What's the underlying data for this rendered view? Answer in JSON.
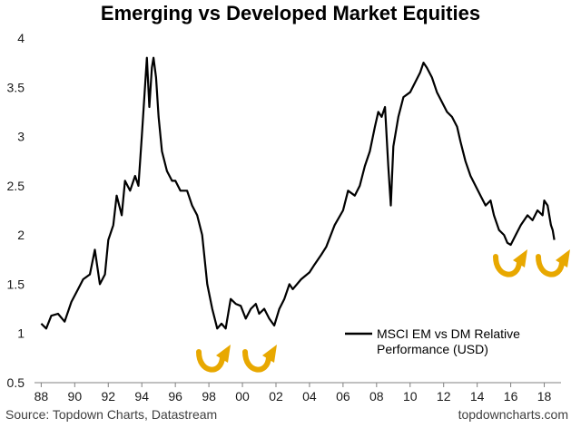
{
  "chart_data": {
    "type": "line",
    "title": "Emerging vs Developed Market Equities",
    "xlabel": "",
    "ylabel": "",
    "ylim": [
      0.5,
      4
    ],
    "yticks": [
      "0.5",
      "1",
      "1.5",
      "2",
      "2.5",
      "3",
      "3.5",
      "4"
    ],
    "xlim": [
      1987.6,
      2019.0
    ],
    "xticks": [
      {
        "year": 1988,
        "label": "88"
      },
      {
        "year": 1990,
        "label": "90"
      },
      {
        "year": 1992,
        "label": "92"
      },
      {
        "year": 1994,
        "label": "94"
      },
      {
        "year": 1996,
        "label": "96"
      },
      {
        "year": 1998,
        "label": "98"
      },
      {
        "year": 2000,
        "label": "00"
      },
      {
        "year": 2002,
        "label": "02"
      },
      {
        "year": 2004,
        "label": "04"
      },
      {
        "year": 2006,
        "label": "06"
      },
      {
        "year": 2008,
        "label": "08"
      },
      {
        "year": 2010,
        "label": "10"
      },
      {
        "year": 2012,
        "label": "12"
      },
      {
        "year": 2014,
        "label": "14"
      },
      {
        "year": 2016,
        "label": "16"
      },
      {
        "year": 2018,
        "label": "18"
      }
    ],
    "grid": false,
    "legend_position": "bottom-right",
    "series": [
      {
        "name": "MSCI EM vs DM Relative Performance (USD)",
        "color": "#000000",
        "x": [
          1988.0,
          1988.3,
          1988.6,
          1989.0,
          1989.4,
          1989.8,
          1990.2,
          1990.5,
          1990.9,
          1991.2,
          1991.5,
          1991.8,
          1992.0,
          1992.3,
          1992.5,
          1992.8,
          1993.0,
          1993.3,
          1993.6,
          1993.8,
          1994.0,
          1994.15,
          1994.3,
          1994.45,
          1994.6,
          1994.7,
          1994.85,
          1995.0,
          1995.2,
          1995.5,
          1995.8,
          1996.0,
          1996.3,
          1996.7,
          1997.0,
          1997.3,
          1997.6,
          1997.9,
          1998.2,
          1998.5,
          1998.75,
          1999.0,
          1999.3,
          1999.6,
          1999.9,
          2000.2,
          2000.5,
          2000.8,
          2001.0,
          2001.3,
          2001.6,
          2001.9,
          2002.2,
          2002.5,
          2002.8,
          2003.0,
          2003.5,
          2004.0,
          2004.3,
          2004.7,
          2005.0,
          2005.5,
          2006.0,
          2006.3,
          2006.7,
          2007.0,
          2007.3,
          2007.6,
          2007.9,
          2008.1,
          2008.3,
          2008.5,
          2008.7,
          2008.85,
          2009.0,
          2009.3,
          2009.6,
          2010.0,
          2010.3,
          2010.6,
          2010.8,
          2011.0,
          2011.3,
          2011.6,
          2011.9,
          2012.2,
          2012.5,
          2012.8,
          2013.0,
          2013.3,
          2013.6,
          2013.9,
          2014.2,
          2014.5,
          2014.8,
          2015.0,
          2015.3,
          2015.6,
          2015.8,
          2016.0,
          2016.3,
          2016.6,
          2017.0,
          2017.3,
          2017.6,
          2017.9,
          2018.0,
          2018.2,
          2018.4,
          2018.5,
          2018.6
        ],
        "y": [
          1.1,
          1.05,
          1.18,
          1.2,
          1.12,
          1.32,
          1.45,
          1.55,
          1.6,
          1.85,
          1.5,
          1.6,
          1.95,
          2.1,
          2.4,
          2.2,
          2.55,
          2.45,
          2.6,
          2.5,
          3.0,
          3.4,
          3.8,
          3.3,
          3.7,
          3.8,
          3.6,
          3.2,
          2.85,
          2.65,
          2.55,
          2.55,
          2.45,
          2.45,
          2.3,
          2.2,
          2.0,
          1.5,
          1.25,
          1.05,
          1.1,
          1.05,
          1.35,
          1.3,
          1.28,
          1.15,
          1.25,
          1.3,
          1.2,
          1.25,
          1.15,
          1.08,
          1.25,
          1.35,
          1.5,
          1.45,
          1.55,
          1.62,
          1.7,
          1.8,
          1.88,
          2.1,
          2.25,
          2.45,
          2.4,
          2.5,
          2.7,
          2.85,
          3.1,
          3.25,
          3.2,
          3.3,
          2.7,
          2.3,
          2.9,
          3.2,
          3.4,
          3.45,
          3.55,
          3.65,
          3.75,
          3.7,
          3.6,
          3.45,
          3.35,
          3.25,
          3.2,
          3.1,
          2.95,
          2.75,
          2.6,
          2.5,
          2.4,
          2.3,
          2.35,
          2.2,
          2.05,
          2.0,
          1.92,
          1.9,
          2.0,
          2.1,
          2.2,
          2.15,
          2.25,
          2.2,
          2.35,
          2.3,
          2.1,
          2.05,
          1.95
        ]
      }
    ],
    "annotations": [
      "curved-arrow-icon",
      "curved-arrow-icon",
      "curved-arrow-icon",
      "curved-arrow-icon"
    ],
    "arrow_color": "#E8A800"
  },
  "footer": {
    "source": "Source: Topdown Charts, Datastream",
    "site": "topdowncharts.com"
  }
}
